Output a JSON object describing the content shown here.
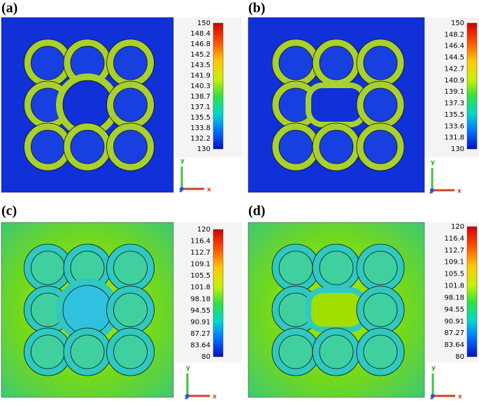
{
  "panels": [
    {
      "label": "(a)",
      "ticks": [
        150,
        148.4,
        146.8,
        145.2,
        143.5,
        141.9,
        140.3,
        138.7,
        137.1,
        135.5,
        133.8,
        132.2,
        130
      ],
      "axes": [
        "y",
        "z",
        "x"
      ]
    },
    {
      "label": "(b)",
      "ticks": [
        150,
        148.2,
        146.4,
        144.5,
        142.7,
        140.9,
        139.1,
        137.3,
        135.5,
        133.6,
        131.8,
        130
      ],
      "axes": [
        "y",
        "z",
        "x"
      ]
    },
    {
      "label": "(c)",
      "ticks": [
        120,
        116.4,
        112.7,
        109.1,
        105.5,
        101.8,
        98.18,
        94.55,
        90.91,
        87.27,
        83.64,
        80
      ],
      "axes": [
        "y",
        "z",
        "x"
      ]
    },
    {
      "label": "(d)",
      "ticks": [
        120,
        116.4,
        112.7,
        109.1,
        105.5,
        101.8,
        98.18,
        94.55,
        90.91,
        87.27,
        83.64,
        80
      ],
      "axes": [
        "y",
        "z",
        "x"
      ]
    }
  ]
}
